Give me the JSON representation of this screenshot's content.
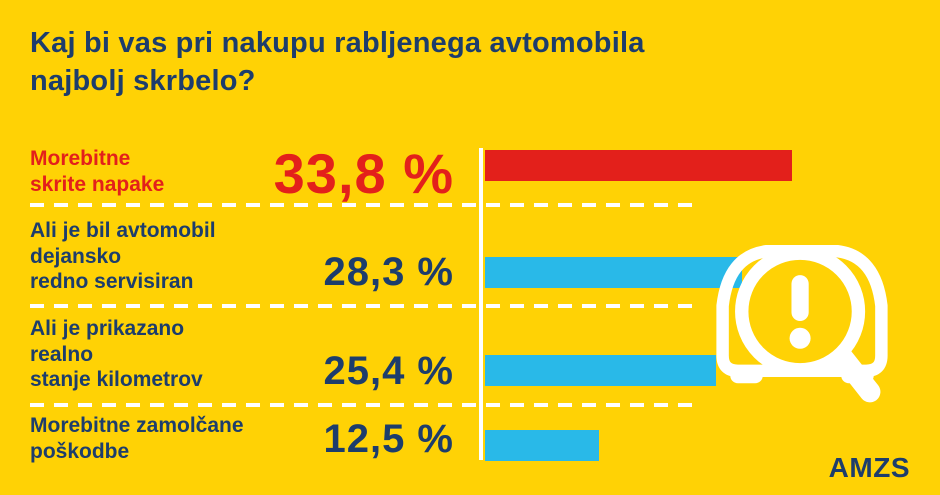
{
  "page": {
    "title": "Kaj bi vas pri nakupu rabljenega avtomobila\nnajbolj skrbelo?"
  },
  "chart_data": {
    "type": "bar",
    "orientation": "horizontal",
    "title": "Kaj bi vas pri nakupu rabljenega avtomobila najbolj skrbelo?",
    "categories": [
      "Morebitne skrite napake",
      "Ali je bil avtomobil dejansko redno servisiran",
      "Ali je prikazano realno stanje kilometrov",
      "Morebitne zamolčane poškodbe"
    ],
    "values": [
      33.8,
      28.3,
      25.4,
      12.5
    ],
    "value_labels": [
      "33,8 %",
      "28,3 %",
      "25,4 %",
      "12,5 %"
    ],
    "unit": "%",
    "xlim": [
      0,
      35
    ],
    "grid": false,
    "legend": "none",
    "bar_colors": [
      "#e3201b",
      "#29b9e8",
      "#29b9e8",
      "#29b9e8"
    ]
  },
  "rows": [
    {
      "label": "Morebitne\nskrite napake",
      "value": 33.8,
      "value_label": "33,8 %"
    },
    {
      "label": "Ali je bil avtomobil\ndejansko\nredno servisiran",
      "value": 28.3,
      "value_label": "28,3 %"
    },
    {
      "label": "Ali je prikazano\nrealno\nstanje kilometrov",
      "value": 25.4,
      "value_label": "25,4 %"
    },
    {
      "label": "Morebitne zamolčane\npoškodbe",
      "value": 12.5,
      "value_label": "12,5 %"
    }
  ],
  "branding": {
    "logo_text": "AMZS"
  },
  "icons": {
    "car_inspection": "car-with-magnifier-and-exclamation"
  },
  "colors": {
    "background": "#ffd205",
    "navy": "#1d3d6c",
    "red": "#e3201b",
    "cyan": "#29b9e8",
    "white": "#ffffff"
  }
}
